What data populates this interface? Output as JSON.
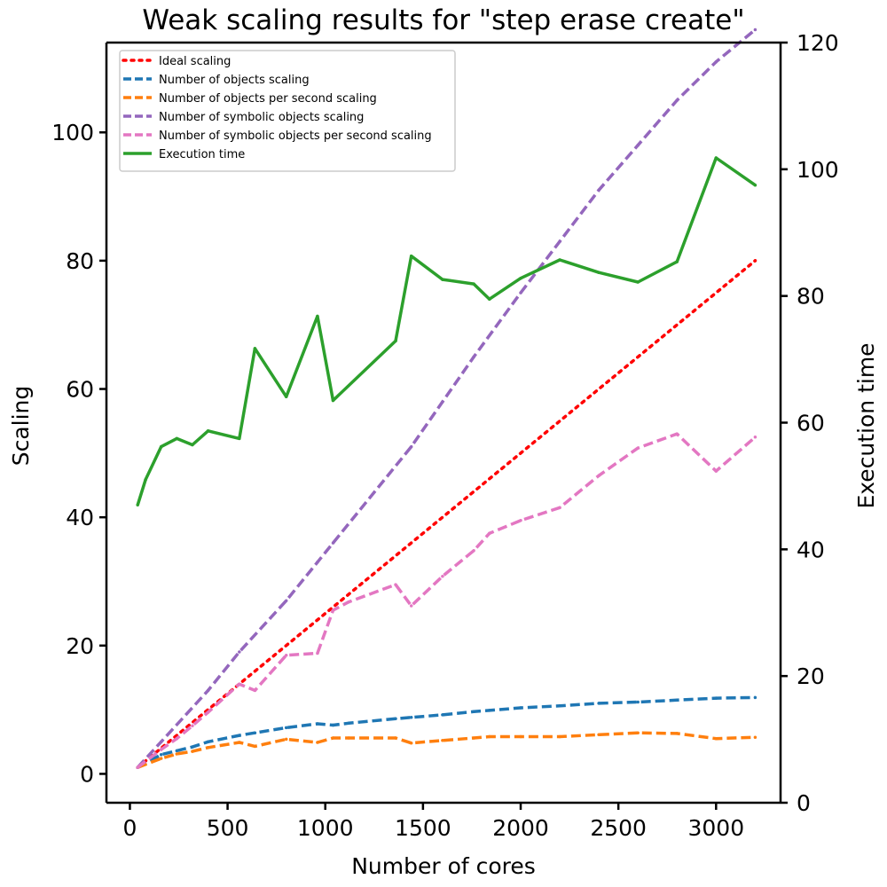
{
  "chart_data": {
    "type": "line",
    "title": "Weak scaling results for \"step erase create\"",
    "xlabel": "Number of cores",
    "ylabel": "Scaling",
    "y2label": "Execution time",
    "xlim": [
      -120,
      3330
    ],
    "ylim": [
      -4.5,
      114
    ],
    "y2lim": [
      0,
      120
    ],
    "xticks": [
      0,
      500,
      1000,
      1500,
      2000,
      2500,
      3000
    ],
    "yticks": [
      0,
      20,
      40,
      60,
      80,
      100
    ],
    "y2ticks": [
      0,
      20,
      40,
      60,
      80,
      100,
      120
    ],
    "legend_position": "upper-left",
    "grid": false,
    "series": [
      {
        "name": "Ideal scaling",
        "axis": "left",
        "color": "#ff0000",
        "style": "dotted",
        "x": [
          40,
          3200
        ],
        "y": [
          1,
          80
        ]
      },
      {
        "name": "Number of objects scaling",
        "axis": "left",
        "color": "#1f77b4",
        "style": "dashed",
        "x": [
          40,
          160,
          240,
          320,
          400,
          560,
          640,
          800,
          960,
          1040,
          1120,
          1360,
          1440,
          1600,
          1760,
          1840,
          2000,
          2200,
          2400,
          2600,
          2800,
          3000,
          3200
        ],
        "y": [
          1,
          3,
          3.6,
          4.2,
          5,
          6,
          6.4,
          7.2,
          7.8,
          7.6,
          7.9,
          8.6,
          8.8,
          9.2,
          9.7,
          9.9,
          10.3,
          10.6,
          11,
          11.2,
          11.5,
          11.8,
          11.9
        ]
      },
      {
        "name": "Number of objects per second scaling",
        "axis": "left",
        "color": "#ff7f0e",
        "style": "dashed",
        "x": [
          40,
          160,
          240,
          320,
          400,
          560,
          640,
          800,
          960,
          1040,
          1120,
          1360,
          1440,
          1600,
          1760,
          1840,
          2000,
          2200,
          2400,
          2600,
          2800,
          3000,
          3200
        ],
        "y": [
          1,
          2.4,
          3.1,
          3.5,
          4.1,
          4.9,
          4.3,
          5.4,
          4.9,
          5.6,
          5.6,
          5.6,
          4.8,
          5.2,
          5.6,
          5.8,
          5.8,
          5.8,
          6.1,
          6.4,
          6.3,
          5.5,
          5.7
        ]
      },
      {
        "name": "Number of symbolic objects scaling",
        "axis": "left",
        "color": "#9467bd",
        "style": "dashed",
        "x": [
          40,
          160,
          400,
          560,
          800,
          960,
          1040,
          1440,
          1600,
          1760,
          2000,
          2200,
          2400,
          2600,
          2800,
          3000,
          3200
        ],
        "y": [
          1,
          5,
          13,
          19,
          27,
          33,
          36,
          51,
          58,
          65,
          75,
          83,
          91,
          98,
          105,
          111,
          116
        ]
      },
      {
        "name": "Number of symbolic objects per second scaling",
        "axis": "left",
        "color": "#e377c2",
        "style": "dashed",
        "x": [
          40,
          160,
          240,
          320,
          400,
          560,
          640,
          800,
          960,
          1040,
          1120,
          1360,
          1440,
          1600,
          1760,
          1840,
          2000,
          2200,
          2400,
          2600,
          2800,
          3000,
          3200
        ],
        "y": [
          1,
          3.8,
          5.5,
          7.5,
          9.6,
          14,
          13,
          18.5,
          18.8,
          25.5,
          26.8,
          29.5,
          26.2,
          30.8,
          34.8,
          37.5,
          39.5,
          41.5,
          46.5,
          50.8,
          53,
          47.2,
          52.5
        ]
      },
      {
        "name": "Execution time",
        "axis": "right",
        "color": "#2ca02c",
        "style": "solid",
        "x": [
          40,
          80,
          160,
          240,
          320,
          400,
          560,
          640,
          800,
          960,
          1040,
          1360,
          1440,
          1600,
          1760,
          1840,
          2000,
          2200,
          2400,
          2600,
          2800,
          3000,
          3200
        ],
        "y": [
          47,
          51,
          56.2,
          57.5,
          56.5,
          58.7,
          57.5,
          71.7,
          64.1,
          76.8,
          63.5,
          72.9,
          86.3,
          82.6,
          81.9,
          79.5,
          82.8,
          85.7,
          83.7,
          82.2,
          85.4,
          101.8,
          97.5
        ]
      }
    ]
  }
}
